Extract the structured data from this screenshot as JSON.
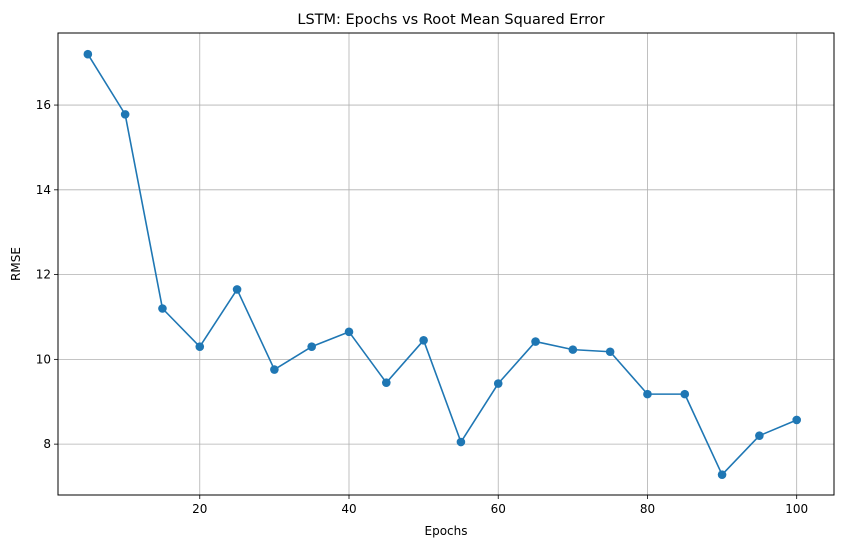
{
  "chart_data": {
    "type": "line",
    "title": "LSTM: Epochs vs Root Mean Squared Error",
    "xlabel": "Epochs",
    "ylabel": "RMSE",
    "xlim": [
      1,
      105
    ],
    "ylim": [
      6.8,
      17.7
    ],
    "xticks": [
      20,
      40,
      60,
      80,
      100
    ],
    "yticks": [
      8,
      10,
      12,
      14,
      16
    ],
    "grid": true,
    "marker": "circle",
    "line_color": "#1f77b4",
    "series": [
      {
        "x": [
          5,
          10,
          15,
          20,
          25,
          30,
          35,
          40,
          45,
          50,
          55,
          60,
          65,
          70,
          75,
          80,
          85,
          90,
          95,
          100
        ],
        "values": [
          17.2,
          15.78,
          11.2,
          10.3,
          11.65,
          9.76,
          10.3,
          10.65,
          9.45,
          10.45,
          8.05,
          9.43,
          10.42,
          10.23,
          10.18,
          9.18,
          9.18,
          7.28,
          8.2,
          8.57
        ]
      }
    ]
  }
}
